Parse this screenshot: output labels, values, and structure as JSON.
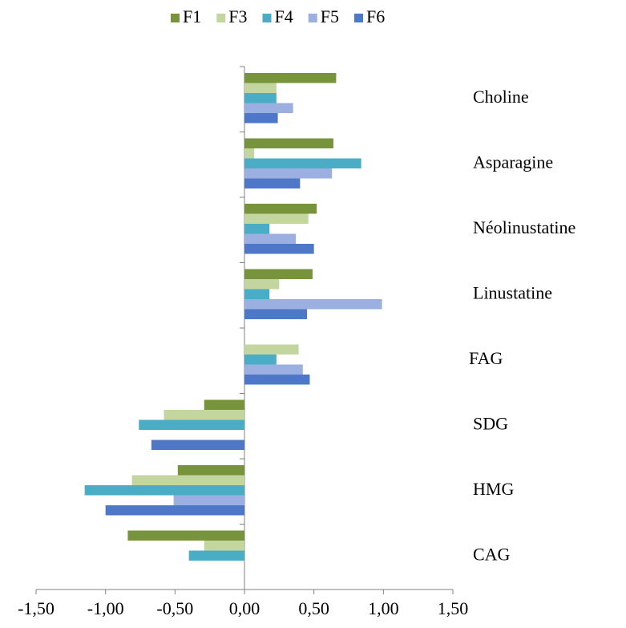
{
  "chart_data": {
    "type": "hbar",
    "categories": [
      "Choline",
      "Asparagine",
      "Néolinustatine",
      "Linustatine",
      "FAG",
      "SDG",
      "HMG",
      "CAG"
    ],
    "series": [
      {
        "name": "F1",
        "color": "#77933c",
        "values": [
          0.66,
          0.64,
          0.52,
          0.49,
          null,
          -0.29,
          -0.48,
          -0.84
        ]
      },
      {
        "name": "F3",
        "color": "#c4d6a0",
        "values": [
          0.23,
          0.07,
          0.46,
          0.25,
          0.39,
          -0.58,
          -0.81,
          -0.29
        ]
      },
      {
        "name": "F4",
        "color": "#4bacc6",
        "values": [
          0.23,
          0.84,
          0.18,
          0.18,
          0.23,
          -0.76,
          -1.15,
          -0.4
        ]
      },
      {
        "name": "F5",
        "color": "#9bb0e0",
        "values": [
          0.35,
          0.63,
          0.37,
          0.99,
          0.42,
          null,
          -0.51,
          null
        ]
      },
      {
        "name": "F6",
        "color": "#4f77c8",
        "values": [
          0.24,
          0.4,
          0.5,
          0.45,
          0.47,
          -0.67,
          -1.0,
          null
        ]
      }
    ],
    "xlim": [
      -1.5,
      1.5
    ],
    "xticks": [
      {
        "value": -1.5,
        "label": "-1,50"
      },
      {
        "value": -1.0,
        "label": "-1,00"
      },
      {
        "value": -0.5,
        "label": "-0,50"
      },
      {
        "value": 0,
        "label": "0,00"
      },
      {
        "value": 0.5,
        "label": "0,50"
      },
      {
        "value": 1.0,
        "label": "1,00"
      },
      {
        "value": 1.5,
        "label": "1,50"
      }
    ],
    "legend": "top"
  }
}
